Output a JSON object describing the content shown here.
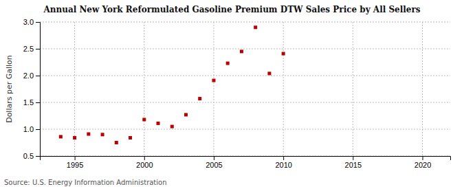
{
  "chart_data": {
    "type": "scatter",
    "title": "Annual New York Reformulated Gasoline Premium DTW Sales Price by All Sellers",
    "ylabel": "Dollars per Gallon",
    "source": "Source: U.S. Energy Information Administration",
    "x": [
      1994,
      1995,
      1996,
      1997,
      1998,
      1999,
      2000,
      2001,
      2002,
      2003,
      2004,
      2005,
      2006,
      2007,
      2008,
      2009,
      2010
    ],
    "values": [
      0.86,
      0.84,
      0.91,
      0.9,
      0.75,
      0.84,
      1.18,
      1.11,
      1.05,
      1.27,
      1.57,
      1.91,
      2.23,
      2.45,
      2.9,
      2.04,
      2.41
    ],
    "color": "#bb0000",
    "marker": "square",
    "xlim": [
      1992.5,
      2022
    ],
    "xticks": [
      1995,
      2000,
      2005,
      2010,
      2015,
      2020
    ],
    "ylim": [
      0.5,
      3.0
    ],
    "yticks": [
      0.5,
      {
        "value": 1.0,
        "label": "1.0"
      },
      1.5,
      {
        "value": 2.0,
        "label": "2.0"
      },
      2.5,
      {
        "value": 3.0,
        "label": "3.0"
      }
    ],
    "grid": true
  }
}
